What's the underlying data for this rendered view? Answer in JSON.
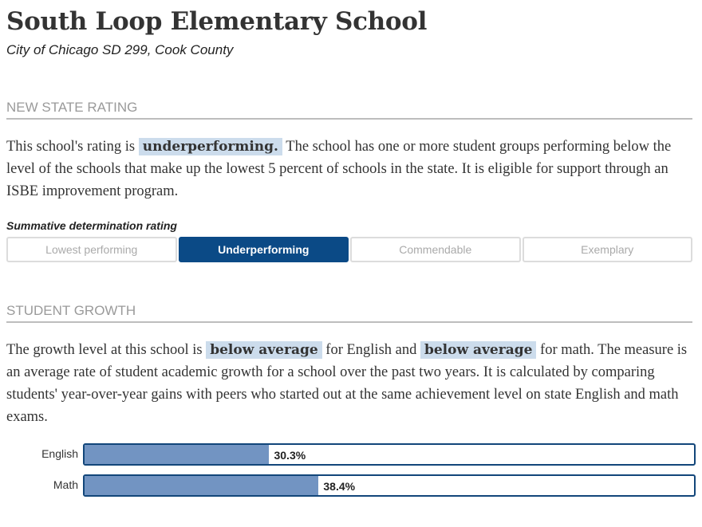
{
  "header": {
    "title": "South Loop Elementary School",
    "subtitle": "City of Chicago SD 299, Cook County"
  },
  "rating_section": {
    "heading": "NEW STATE RATING",
    "text_before": "This school's rating is",
    "highlight": "underperforming.",
    "text_after": "The school has one or more student groups performing below the level of the schools that make up the lowest 5 percent of schools in the state. It is eligible for support through an ISBE improvement program.",
    "scale_label": "Summative determination rating",
    "options": [
      "Lowest performing",
      "Underperforming",
      "Commendable",
      "Exemplary"
    ],
    "selected": "Underperforming"
  },
  "growth_section": {
    "heading": "STUDENT GROWTH",
    "text_1": "The growth level at this school is",
    "highlight_1": "below average",
    "text_2": "for English and",
    "highlight_2": "below average",
    "text_3": "for math. The measure is an average rate of student academic growth for a school over the past two years. It is calculated by comparing students' year-over-year gains with peers who started out at the same achievement level on state English and math exams.",
    "bars": [
      {
        "label": "English",
        "value": 30.3,
        "value_label": "30.3%"
      },
      {
        "label": "Math",
        "value": 38.4,
        "value_label": "38.4%"
      }
    ]
  },
  "colors": {
    "accent": "#0b4a86",
    "highlight_bg": "#ccdcec",
    "bar_fill": "#7294c2",
    "bar_border": "#12467a"
  }
}
